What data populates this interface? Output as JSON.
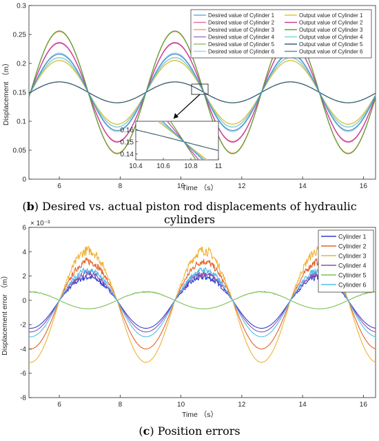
{
  "captions": {
    "b_letter": "b",
    "b_text": "Desired vs. actual piston rod displacements of hydraulic cylinders",
    "c_letter": "c",
    "c_text": "Position errors"
  },
  "chart_data": [
    {
      "type": "line",
      "xlabel": "Time （s）",
      "ylabel": "Displacement （m）",
      "xlim": [
        5,
        16.4
      ],
      "ylim": [
        0,
        0.3
      ],
      "xticks": [
        "6",
        "8",
        "10",
        "12",
        "14",
        "16"
      ],
      "yticks": [
        "0",
        "0.05",
        "0.1",
        "0.15",
        "0.2",
        "0.25",
        "0.3"
      ],
      "legend_position": "top-right",
      "period_s": 3.8,
      "series": [
        {
          "name": "Desired value of Cylinder 1",
          "color": "#6ab0de",
          "center": 0.15,
          "amplitude": 0.055,
          "phase_peak_s": 6.0
        },
        {
          "name": "Desired value of Cylinder 2",
          "color": "#e3729a",
          "center": 0.15,
          "amplitude": 0.085,
          "phase_peak_s": 6.0
        },
        {
          "name": "Desired value of Cylinder 3",
          "color": "#f2a061",
          "center": 0.15,
          "amplitude": 0.105,
          "phase_peak_s": 6.0
        },
        {
          "name": "Desired value of Cylinder 4",
          "color": "#9b7dc7",
          "center": 0.15,
          "amplitude": 0.06,
          "phase_peak_s": 6.0
        },
        {
          "name": "Desired value of Cylinder 5",
          "color": "#93c46a",
          "center": 0.15,
          "amplitude": 0.018,
          "phase_peak_s": 9.8
        },
        {
          "name": "Desired value of Cylinder 6",
          "color": "#a9cff0",
          "center": 0.15,
          "amplitude": 0.068,
          "phase_peak_s": 6.0
        },
        {
          "name": "Output value of Cylinder 1",
          "color": "#e8c531",
          "center": 0.15,
          "amplitude": 0.055,
          "phase_peak_s": 6.0
        },
        {
          "name": "Output value of Cylinder 2",
          "color": "#c93ea1",
          "center": 0.15,
          "amplitude": 0.086,
          "phase_peak_s": 6.0
        },
        {
          "name": "Output value of Cylinder 3",
          "color": "#5fa03a",
          "center": 0.15,
          "amplitude": 0.106,
          "phase_peak_s": 6.0
        },
        {
          "name": "Output value of Cylinder 4",
          "color": "#79d8d4",
          "center": 0.15,
          "amplitude": 0.06,
          "phase_peak_s": 6.0
        },
        {
          "name": "Output value of Cylinder 5",
          "color": "#3e5f7a",
          "center": 0.15,
          "amplitude": 0.018,
          "phase_peak_s": 9.8
        },
        {
          "name": "Output value of Cylinder 6",
          "color": "#4a8fc4",
          "center": 0.15,
          "amplitude": 0.066,
          "phase_peak_s": 6.0
        }
      ],
      "inset": {
        "xlim": [
          10.4,
          11
        ],
        "ylim": [
          0.135,
          0.167
        ],
        "xticks": [
          "10.4",
          "10.6",
          "10.8",
          "11"
        ],
        "yticks": [
          "0.14",
          "0.15",
          "0.16"
        ]
      }
    },
    {
      "type": "line",
      "xlabel": "Time （s）",
      "ylabel": "Displacement error （m）",
      "xlim": [
        5,
        16.4
      ],
      "ylim": [
        -8,
        6
      ],
      "y_multiplier": "× 10⁻³",
      "xticks": [
        "6",
        "8",
        "10",
        "12",
        "14",
        "16"
      ],
      "yticks": [
        "-8",
        "-6",
        "-4",
        "-2",
        "0",
        "2",
        "4",
        "6"
      ],
      "legend_position": "top-right",
      "period_s": 3.8,
      "series": [
        {
          "name": "Cylinder 1",
          "color": "#2f3fd0",
          "positive_peak": 1.9,
          "negative_peak": -2.3,
          "phase_zero_s": 6.0,
          "noise": 0.25
        },
        {
          "name": "Cylinder 2",
          "color": "#e3612a",
          "positive_peak": 3.2,
          "negative_peak": -4.0,
          "phase_zero_s": 6.0,
          "noise": 0.3
        },
        {
          "name": "Cylinder 3",
          "color": "#f0b030",
          "positive_peak": 4.1,
          "negative_peak": -5.1,
          "phase_zero_s": 6.0,
          "noise": 0.4
        },
        {
          "name": "Cylinder 4",
          "color": "#8a4fb0",
          "positive_peak": 2.2,
          "negative_peak": -2.6,
          "phase_zero_s": 6.0,
          "noise": 0.25
        },
        {
          "name": "Cylinder 5",
          "color": "#7cbf50",
          "positive_peak": 0.7,
          "negative_peak": -0.7,
          "phase_zero_s": 7.9,
          "noise": 0.05
        },
        {
          "name": "Cylinder 6",
          "color": "#4fbde6",
          "positive_peak": 2.5,
          "negative_peak": -3.0,
          "phase_zero_s": 6.0,
          "noise": 0.25
        }
      ]
    }
  ]
}
